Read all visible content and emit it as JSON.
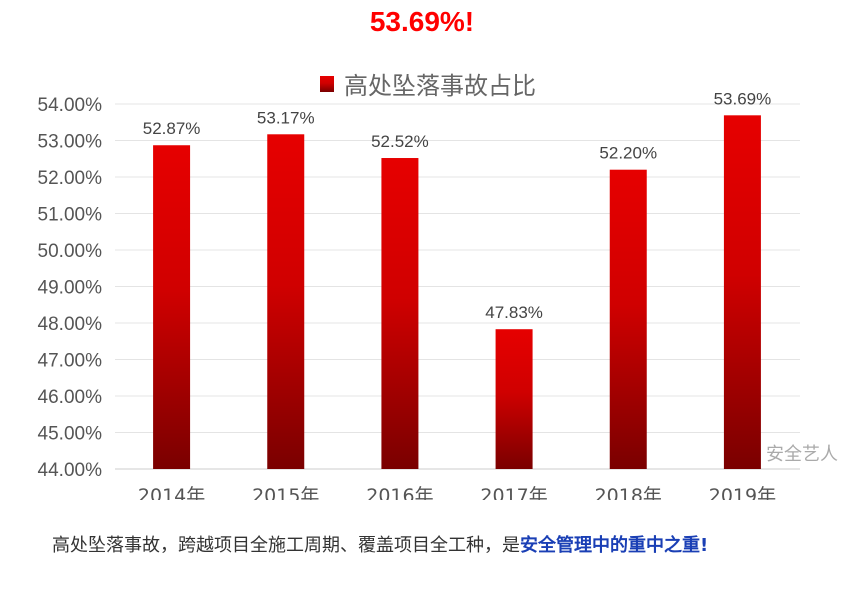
{
  "headline": "53.69%!",
  "chart_data": {
    "type": "bar",
    "title": "",
    "legend": {
      "entries": [
        "高处坠落事故占比"
      ],
      "placement": "top"
    },
    "categories": [
      "2014年",
      "2015年",
      "2016年",
      "2017年",
      "2018年",
      "2019年"
    ],
    "series": [
      {
        "name": "高处坠落事故占比",
        "values": [
          52.87,
          53.17,
          52.52,
          47.83,
          52.2,
          53.69
        ]
      }
    ],
    "data_labels": [
      "52.87%",
      "53.17%",
      "52.52%",
      "47.83%",
      "52.20%",
      "53.69%"
    ],
    "y_ticks": [
      "44.00%",
      "45.00%",
      "46.00%",
      "47.00%",
      "48.00%",
      "49.00%",
      "50.00%",
      "51.00%",
      "52.00%",
      "53.00%",
      "54.00%"
    ],
    "ylim": [
      44,
      54
    ],
    "grid": "horizontal",
    "bar_color_top": "#e60000",
    "bar_color_bottom": "#7a0000",
    "xlabel": "",
    "ylabel": ""
  },
  "watermark": "安全艺人",
  "caption": {
    "normal": "高处坠落事故，跨越项目全施工周期、覆盖项目全工种，是",
    "highlight": "安全管理中的重中之重!"
  }
}
